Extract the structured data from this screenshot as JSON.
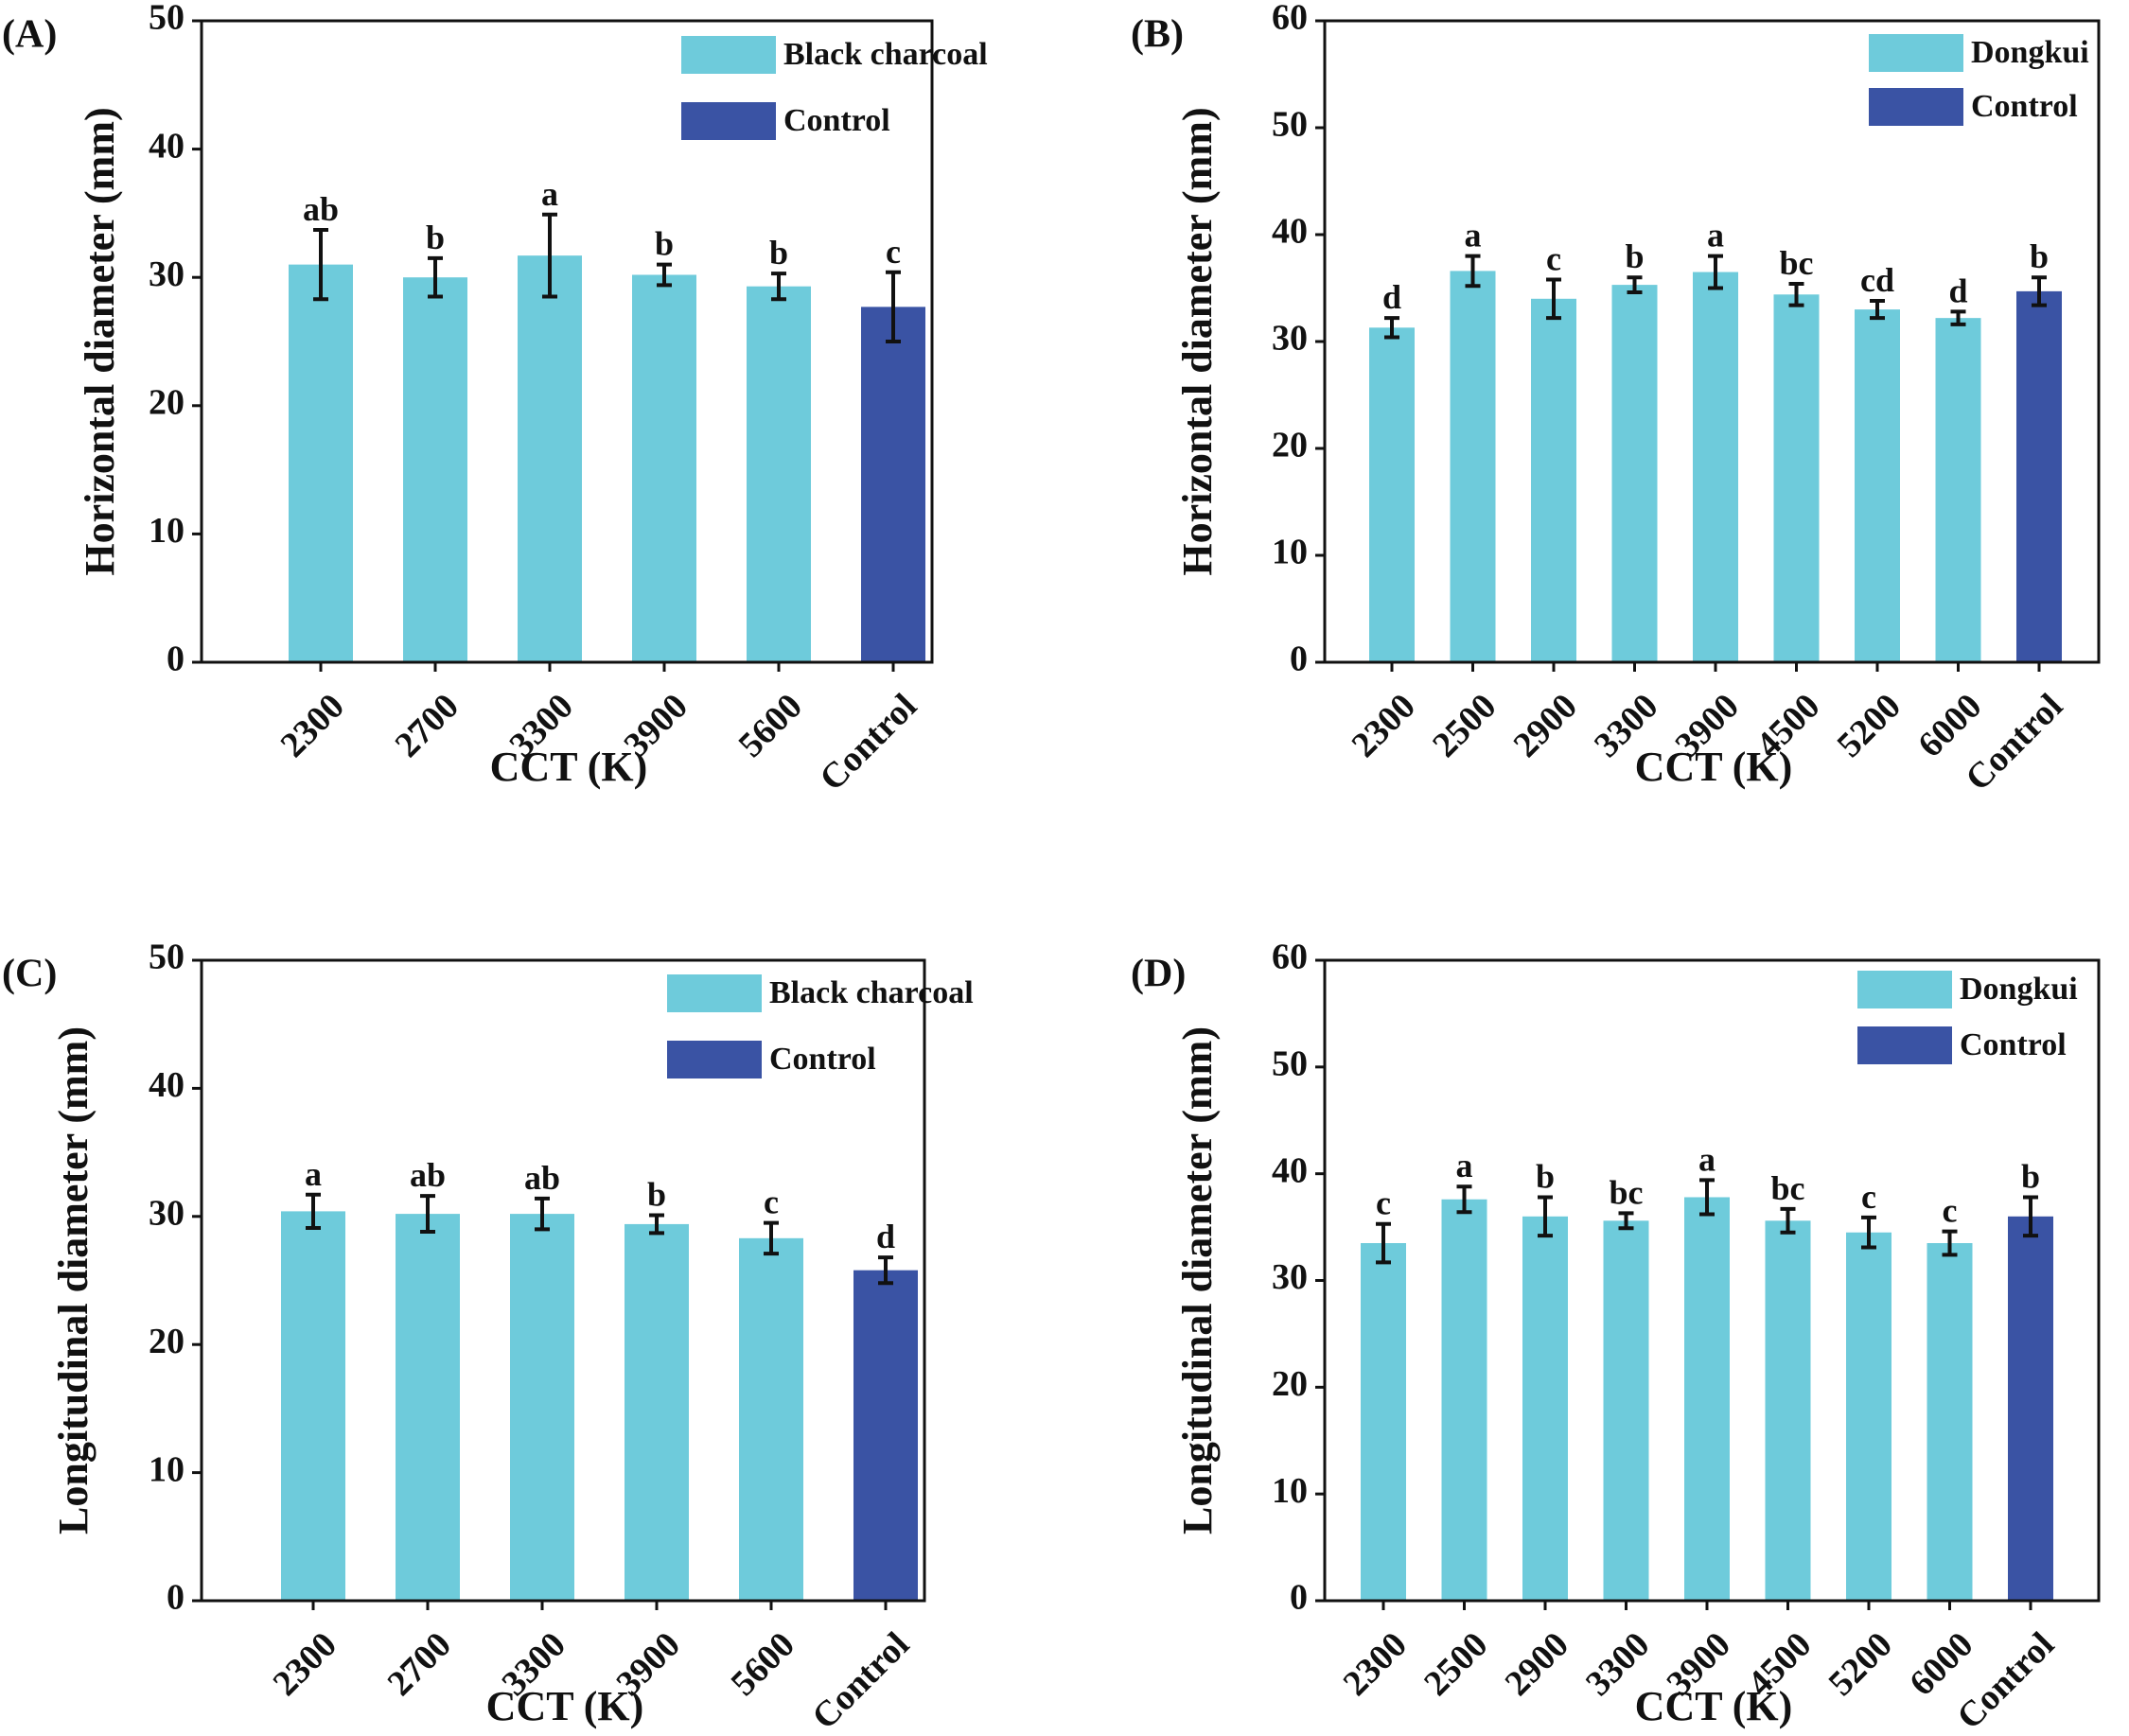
{
  "chart_data": [
    {
      "panel": "(A)",
      "type": "bar",
      "categories": [
        "2300",
        "2700",
        "3300",
        "3900",
        "5600",
        "Control"
      ],
      "values": [
        31.0,
        30.0,
        31.7,
        30.2,
        29.3,
        27.7
      ],
      "errors": [
        2.7,
        1.5,
        3.2,
        0.8,
        1.0,
        2.7
      ],
      "letters": [
        "ab",
        "b",
        "a",
        "b",
        "b",
        "c"
      ],
      "series_of_bar": [
        "Black charcoal",
        "Black charcoal",
        "Black charcoal",
        "Black charcoal",
        "Black charcoal",
        "Control"
      ],
      "xlabel": "CCT (K)",
      "ylabel": "Horizontal diameter (mm)",
      "ylim": [
        0,
        50
      ],
      "yticks": [
        0,
        10,
        20,
        30,
        40,
        50
      ],
      "legend": [
        {
          "label": "Black charcoal",
          "color": "#6ECBDB"
        },
        {
          "label": "Control",
          "color": "#3A53A4"
        }
      ],
      "legend_position": "top-right"
    },
    {
      "panel": "(B)",
      "type": "bar",
      "categories": [
        "2300",
        "2500",
        "2900",
        "3300",
        "3900",
        "4500",
        "5200",
        "6000",
        "Control"
      ],
      "values": [
        31.3,
        36.6,
        34.0,
        35.3,
        36.5,
        34.4,
        33.0,
        32.2,
        34.7
      ],
      "errors": [
        0.9,
        1.4,
        1.8,
        0.7,
        1.5,
        1.0,
        0.8,
        0.6,
        1.3
      ],
      "letters": [
        "d",
        "a",
        "c",
        "b",
        "a",
        "bc",
        "cd",
        "d",
        "b"
      ],
      "series_of_bar": [
        "Dongkui",
        "Dongkui",
        "Dongkui",
        "Dongkui",
        "Dongkui",
        "Dongkui",
        "Dongkui",
        "Dongkui",
        "Control"
      ],
      "xlabel": "CCT (K)",
      "ylabel": "Horizontal diameter (mm)",
      "ylim": [
        0,
        60
      ],
      "yticks": [
        0,
        10,
        20,
        30,
        40,
        50,
        60
      ],
      "legend": [
        {
          "label": "Dongkui",
          "color": "#6ECBDB"
        },
        {
          "label": "Control",
          "color": "#3A53A4"
        }
      ],
      "legend_position": "top-right"
    },
    {
      "panel": "(C)",
      "type": "bar",
      "categories": [
        "2300",
        "2700",
        "3300",
        "3900",
        "5600",
        "Control"
      ],
      "values": [
        30.4,
        30.2,
        30.2,
        29.4,
        28.3,
        25.8
      ],
      "errors": [
        1.3,
        1.4,
        1.2,
        0.7,
        1.2,
        1.0
      ],
      "letters": [
        "a",
        "ab",
        "ab",
        "b",
        "c",
        "d"
      ],
      "series_of_bar": [
        "Black charcoal",
        "Black charcoal",
        "Black charcoal",
        "Black charcoal",
        "Black charcoal",
        "Control"
      ],
      "xlabel": "CCT (K)",
      "ylabel": "Longitudinal diameter (mm)",
      "ylim": [
        0,
        50
      ],
      "yticks": [
        0,
        10,
        20,
        30,
        40,
        50
      ],
      "legend": [
        {
          "label": "Black charcoal",
          "color": "#6ECBDB"
        },
        {
          "label": "Control",
          "color": "#3A53A4"
        }
      ],
      "legend_position": "top-right"
    },
    {
      "panel": "(D)",
      "type": "bar",
      "categories": [
        "2300",
        "2500",
        "2900",
        "3300",
        "3900",
        "4500",
        "5200",
        "6000",
        "Control"
      ],
      "values": [
        33.5,
        37.6,
        36.0,
        35.6,
        37.8,
        35.6,
        34.5,
        33.5,
        36.0
      ],
      "errors": [
        1.8,
        1.2,
        1.8,
        0.7,
        1.6,
        1.1,
        1.4,
        1.1,
        1.8
      ],
      "letters": [
        "c",
        "a",
        "b",
        "bc",
        "a",
        "bc",
        "c",
        "c",
        "b"
      ],
      "series_of_bar": [
        "Dongkui",
        "Dongkui",
        "Dongkui",
        "Dongkui",
        "Dongkui",
        "Dongkui",
        "Dongkui",
        "Dongkui",
        "Control"
      ],
      "xlabel": "CCT (K)",
      "ylabel": "Longitudinal diameter (mm)",
      "ylim": [
        0,
        60
      ],
      "yticks": [
        0,
        10,
        20,
        30,
        40,
        50,
        60
      ],
      "legend": [
        {
          "label": "Dongkui",
          "color": "#6ECBDB"
        },
        {
          "label": "Control",
          "color": "#3A53A4"
        }
      ],
      "legend_position": "top-right"
    }
  ]
}
